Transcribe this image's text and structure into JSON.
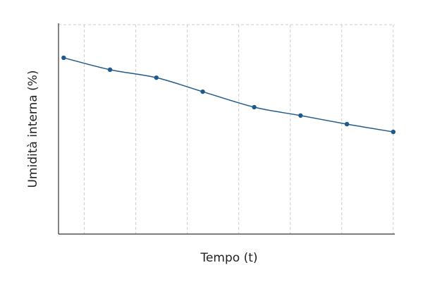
{
  "chart_data": {
    "type": "line",
    "xlabel": "Tempo (t)",
    "ylabel": "Umidità interna (%)",
    "x": [
      0.6,
      1.5,
      2.4,
      3.3,
      4.3,
      5.2,
      6.1,
      7.0
    ],
    "values": [
      84.2,
      78.5,
      74.7,
      68.0,
      60.6,
      56.6,
      52.5,
      48.8
    ],
    "color": "#1f5a8c",
    "xlim": [
      0.5,
      7.03
    ],
    "xticks": [
      1,
      2,
      3,
      4,
      5,
      6,
      7
    ],
    "ylim": [
      0,
      100
    ],
    "yticks": [
      100
    ],
    "grid": true
  }
}
